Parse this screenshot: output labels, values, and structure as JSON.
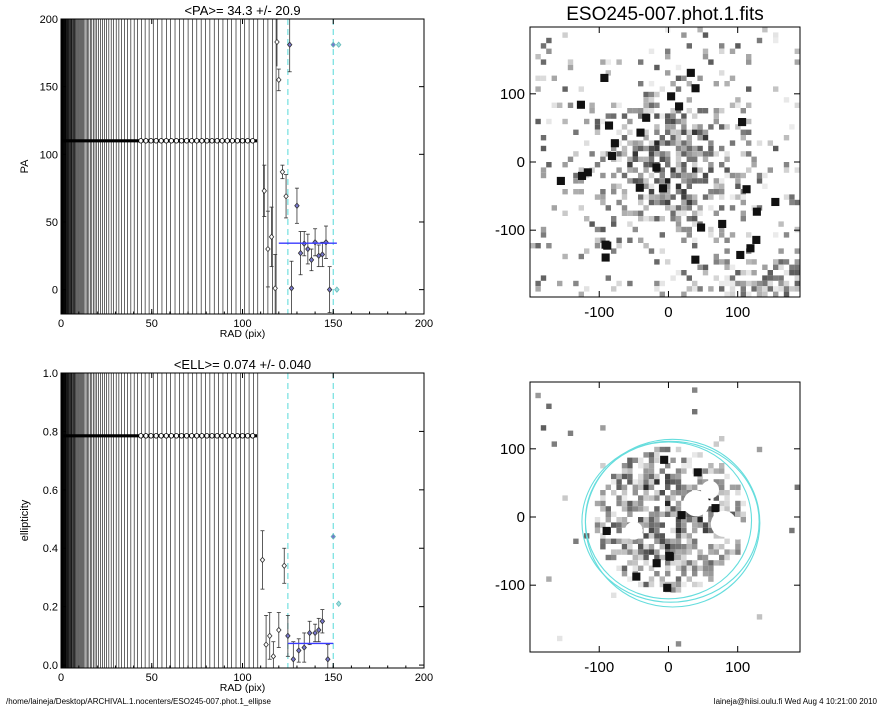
{
  "footer": {
    "path": "/home/laineja/Desktop/ARCHIVAL.1.nocenters/ESO245-007.phot.1_ellipse",
    "stamp": "laineja@hiisi.oulu.fi  Wed Aug  4 10:21:00 2010"
  },
  "chart_data": [
    {
      "type": "scatter",
      "id": "pa",
      "title": "<PA>=  34.3 +/-  20.9",
      "xlabel": "RAD (pix)",
      "ylabel": "PA",
      "xlim": [
        0,
        200
      ],
      "ylim": [
        -18,
        200
      ],
      "xticks": [
        0,
        50,
        100,
        150,
        200
      ],
      "yticks": [
        0,
        50,
        100,
        150,
        200
      ],
      "vlines": [
        125,
        150
      ],
      "mean_line": {
        "x": [
          120,
          152
        ],
        "y": 34.3
      },
      "points": [
        {
          "x": 112,
          "y": 73,
          "e": 19
        },
        {
          "x": 114,
          "y": 30,
          "e": 28
        },
        {
          "x": 116,
          "y": 39,
          "e": 22
        },
        {
          "x": 118,
          "y": 1,
          "e": 25
        },
        {
          "x": 120,
          "y": 155,
          "e": 8
        },
        {
          "x": 122,
          "y": 87,
          "e": 5
        },
        {
          "x": 124,
          "y": 69,
          "e": 16
        },
        {
          "x": 126,
          "y": 181,
          "e": 20
        },
        {
          "x": 127,
          "y": 1,
          "e": 20
        },
        {
          "x": 130,
          "y": 62,
          "e": 13
        },
        {
          "x": 132,
          "y": 27,
          "e": 16
        },
        {
          "x": 134,
          "y": 34,
          "e": 9
        },
        {
          "x": 136,
          "y": 30,
          "e": 11
        },
        {
          "x": 138,
          "y": 22,
          "e": 8
        },
        {
          "x": 140,
          "y": 35,
          "e": 10
        },
        {
          "x": 142,
          "y": 25,
          "e": 8
        },
        {
          "x": 144,
          "y": 26,
          "e": 9
        },
        {
          "x": 146,
          "y": 35,
          "e": 12
        },
        {
          "x": 148,
          "y": 0,
          "e": 17
        },
        {
          "x": 150,
          "y": 181,
          "e": 0
        },
        {
          "x": 153,
          "y": 181,
          "e": 0
        },
        {
          "x": 152,
          "y": 0,
          "e": 0
        }
      ],
      "upper_points": [
        {
          "x": 119,
          "y": 183
        }
      ]
    },
    {
      "type": "scatter",
      "id": "ell",
      "title": "<ELL>= 0.074 +/-  0.040",
      "xlabel": "RAD (pix)",
      "ylabel": "ellipticity",
      "xlim": [
        0,
        200
      ],
      "ylim": [
        -0.01,
        1.0
      ],
      "xticks": [
        0,
        50,
        100,
        150,
        200
      ],
      "yticks": [
        0.0,
        0.2,
        0.4,
        0.6,
        0.8,
        1.0
      ],
      "yticklabels": [
        "0.0",
        "0.2",
        "0.4",
        "0.6",
        "0.8",
        "1.0"
      ],
      "vlines": [
        125,
        150
      ],
      "mean_line": {
        "x": [
          125,
          150
        ],
        "y": 0.074
      },
      "points": [
        {
          "x": 111,
          "y": 0.36,
          "e": 0.1
        },
        {
          "x": 113,
          "y": 0.07,
          "e": 0.1
        },
        {
          "x": 115,
          "y": 0.1,
          "e": 0.08
        },
        {
          "x": 117,
          "y": 0.03,
          "e": 0.05
        },
        {
          "x": 120,
          "y": 0.12,
          "e": 0.06
        },
        {
          "x": 123,
          "y": 0.34,
          "e": 0.06
        },
        {
          "x": 125,
          "y": 0.1,
          "e": 0.07
        },
        {
          "x": 128,
          "y": 0.02,
          "e": 0.06
        },
        {
          "x": 131,
          "y": 0.05,
          "e": 0.04
        },
        {
          "x": 134,
          "y": 0.06,
          "e": 0.05
        },
        {
          "x": 137,
          "y": 0.11,
          "e": 0.04
        },
        {
          "x": 140,
          "y": 0.11,
          "e": 0.03
        },
        {
          "x": 142,
          "y": 0.12,
          "e": 0.04
        },
        {
          "x": 144,
          "y": 0.15,
          "e": 0.04
        },
        {
          "x": 147,
          "y": 0.02,
          "e": 0.05
        },
        {
          "x": 150,
          "y": 0.44,
          "e": 0.0
        },
        {
          "x": 153,
          "y": 0.21,
          "e": 0.0
        }
      ]
    }
  ],
  "images": [
    {
      "id": "img1",
      "title": "ESO245-007.phot.1.fits",
      "xlim": [
        -200,
        190
      ],
      "ylim": [
        -198,
        198
      ],
      "xticks": [
        -100,
        0,
        100
      ],
      "yticks": [
        -100,
        0,
        100
      ]
    },
    {
      "id": "img2",
      "title": "",
      "xlim": [
        -200,
        190
      ],
      "ylim": [
        -198,
        198
      ],
      "xticks": [
        -100,
        0,
        100
      ],
      "yticks": [
        -100,
        0,
        100
      ],
      "pa_line_deg": 34.3
    }
  ],
  "colors": {
    "mean": "#3a3aff",
    "vline": "#66dddd",
    "ellipse": "#66dddd",
    "paline": "#2a2ab8",
    "flagged_marker": "#66bbbb"
  }
}
